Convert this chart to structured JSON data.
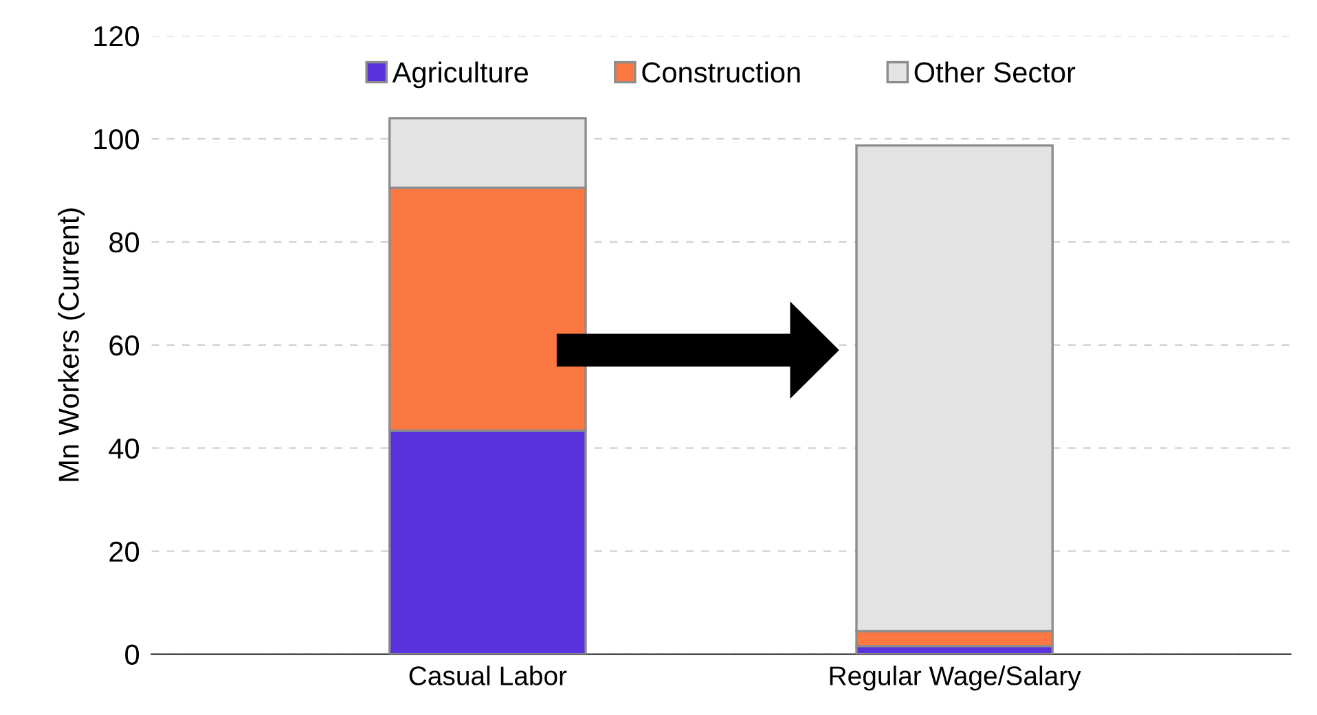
{
  "chart_data": {
    "type": "bar",
    "stacked": true,
    "ylabel": "Mn Workers (Current)",
    "categories": [
      "Casual Labor",
      "Regular Wage/Salary"
    ],
    "series": [
      {
        "name": "Agriculture",
        "color": "#5932de",
        "values": [
          43.4,
          1.6
        ]
      },
      {
        "name": "Construction",
        "color": "#fb7842",
        "values": [
          47.1,
          2.9
        ]
      },
      {
        "name": "Other Sector",
        "color": "#e3e3e3",
        "values": [
          13.5,
          94.2
        ]
      }
    ],
    "ylim": [
      0,
      120
    ],
    "yticks": [
      0,
      20,
      40,
      60,
      80,
      100,
      120
    ],
    "grid": "y",
    "legend": "top"
  }
}
